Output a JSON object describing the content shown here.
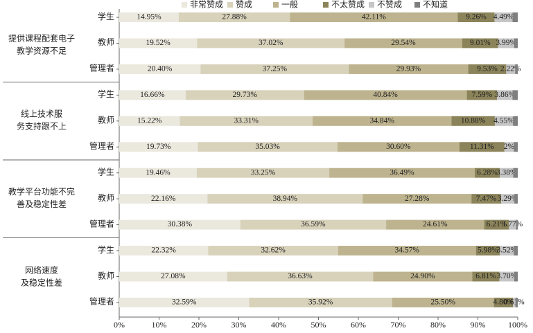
{
  "chart_data": {
    "type": "stacked-bar-horizontal",
    "categories": [
      "学生",
      "教师",
      "管理者",
      "学生",
      "教师",
      "管理者",
      "学生",
      "教师",
      "管理者",
      "学生",
      "教师",
      "管理者"
    ],
    "groups": [
      {
        "lines": [
          "提供课程配套电子",
          "教学资源不足"
        ]
      },
      {
        "lines": [
          "线上技术服",
          "务支持跟不上"
        ]
      },
      {
        "lines": [
          "教学平台功能不完",
          "善及稳定性差"
        ]
      },
      {
        "lines": [
          "网络速度",
          "及稳定性差"
        ]
      }
    ],
    "series": [
      {
        "name": "非常赞成",
        "color": "#ebe8de",
        "values": [
          14.95,
          19.52,
          20.4,
          16.66,
          15.22,
          19.73,
          19.46,
          22.16,
          30.38,
          22.32,
          27.08,
          32.59
        ],
        "value_labels": [
          "14.95%",
          "19.52%",
          "20.40%",
          "16.66%",
          "15.22%",
          "19.73%",
          "19.46%",
          "22.16%",
          "30.38%",
          "22.32%",
          "27.08%",
          "32.59%"
        ]
      },
      {
        "name": "赞成",
        "color": "#d8d2bb",
        "values": [
          27.88,
          37.02,
          37.25,
          29.73,
          33.31,
          35.03,
          33.25,
          38.94,
          36.59,
          32.62,
          36.63,
          35.92
        ],
        "value_labels": [
          "27.88%",
          "37.02%",
          "37.25%",
          "29.73%",
          "33.31%",
          "35.03%",
          "33.25%",
          "38.94%",
          "36.59%",
          "32.62%",
          "36.63%",
          "35.92%"
        ]
      },
      {
        "name": "一般",
        "color": "#bdb38e",
        "values": [
          42.11,
          29.54,
          29.93,
          40.84,
          34.84,
          30.6,
          36.49,
          27.28,
          24.61,
          34.57,
          24.9,
          25.5
        ],
        "value_labels": [
          "42.11%",
          "29.54%",
          "29.93%",
          "40.84%",
          "34.84%",
          "30.60%",
          "36.49%",
          "27.28%",
          "24.61%",
          "34.57%",
          "24.90%",
          "25.50%"
        ]
      },
      {
        "name": "不太赞成",
        "color": "#8b8359",
        "values": [
          9.26,
          9.01,
          9.53,
          7.59,
          10.88,
          11.31,
          6.28,
          7.47,
          6.21,
          5.98,
          6.81,
          4.8
        ],
        "value_labels": [
          "9.26%",
          "9.01%",
          "9.53%",
          "7.59%",
          "10.88%",
          "11.31%",
          "6.28%",
          "7.47%",
          "6.21%",
          "5.98%",
          "6.81%",
          "4.80%"
        ]
      },
      {
        "name": "不赞成",
        "color": "#c6c6c6",
        "values": [
          4.49,
          3.99,
          2.22,
          3.86,
          4.55,
          2.32,
          3.38,
          3.29,
          1.77,
          3.52,
          3.7,
          0.61
        ],
        "value_labels": [
          "4.49%",
          "3.99%",
          "2.22%",
          "3.86%",
          "4.55%",
          "2%",
          "3.38%",
          "3.29%",
          "1.77%",
          "3.52%",
          "3.70%",
          "0.61%"
        ]
      },
      {
        "name": "不知道",
        "color": "#7f7f7f",
        "values": [
          1.31,
          0.92,
          0.67,
          1.32,
          1.2,
          1.01,
          1.14,
          0.86,
          0.44,
          0.99,
          0.88,
          0.6
        ]
      }
    ],
    "xlim": [
      0,
      100
    ],
    "xticks": [
      {
        "value": 0,
        "label": "0%"
      },
      {
        "value": 10,
        "label": "10%"
      },
      {
        "value": 20,
        "label": "20%"
      },
      {
        "value": 30,
        "label": "30%"
      },
      {
        "value": 40,
        "label": "40%"
      },
      {
        "value": 50,
        "label": "50%"
      },
      {
        "value": 60,
        "label": "60%"
      },
      {
        "value": 70,
        "label": "70%"
      },
      {
        "value": 80,
        "label": "80%"
      },
      {
        "value": 90,
        "label": "90%"
      },
      {
        "value": 100,
        "label": "100%"
      }
    ]
  }
}
